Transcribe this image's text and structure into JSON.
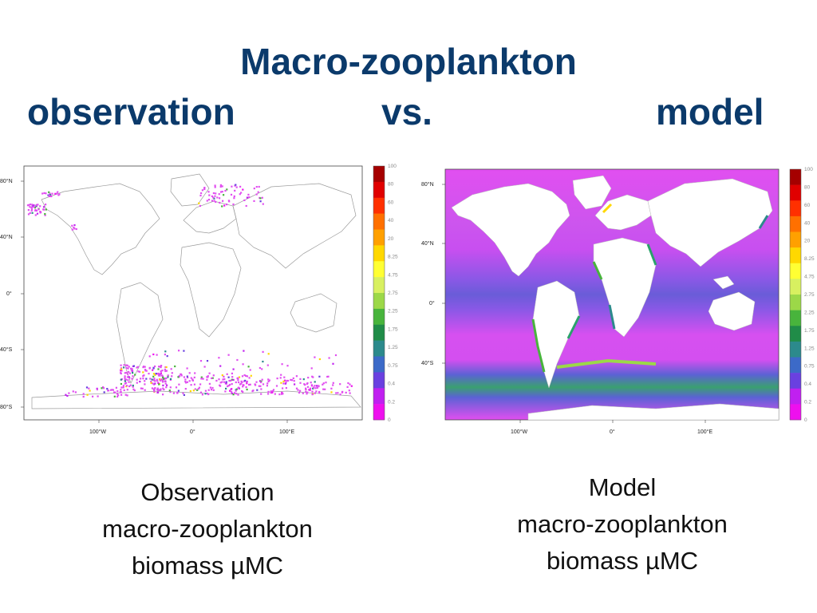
{
  "slide": {
    "title_line1": "Macro-zooplankton",
    "title_left": "observation",
    "title_middle": "vs.",
    "title_right": "model"
  },
  "colorbar": {
    "labels": [
      "100",
      "80",
      "60",
      "40",
      "20",
      "8.25",
      "4.75",
      "2.75",
      "2.25",
      "1.75",
      "1.25",
      "0.75",
      "0.4",
      "0.2",
      "0"
    ],
    "colors": [
      "#a50000",
      "#e00000",
      "#ff3000",
      "#ff7000",
      "#ffa000",
      "#ffd800",
      "#ffff33",
      "#d8f060",
      "#9cd848",
      "#48b43c",
      "#208c48",
      "#2c8a8c",
      "#3c6ac8",
      "#6a40e0",
      "#c020f0",
      "#ee10ee"
    ]
  },
  "observation_map": {
    "lat_labels": [
      "80°N",
      "40°N",
      "0°",
      "40°S",
      "80°S"
    ],
    "lon_labels": [
      "100°W",
      "0°",
      "100°E"
    ]
  },
  "model_map": {
    "lat_labels": [
      "80°N",
      "40°N",
      "0°",
      "40°S"
    ],
    "lon_labels": [
      "100°W",
      "0°",
      "100°E"
    ]
  },
  "captions": {
    "observation": [
      "Observation",
      "macro-zooplankton",
      "biomass µMC"
    ],
    "model": [
      "Model",
      "macro-zooplankton",
      "biomass µMC"
    ]
  },
  "theme": {
    "title_color": "#0b3a6b",
    "ocean_magenta": "#e14ff0",
    "ocean_blue": "#5b62d4",
    "ocean_green": "#2aa26a"
  }
}
